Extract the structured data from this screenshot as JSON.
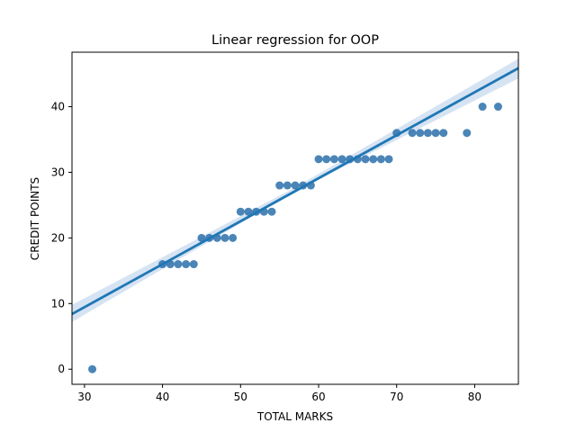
{
  "chart_data": {
    "type": "scatter",
    "title": "Linear regression for OOP",
    "xlabel": "TOTAL MARKS",
    "ylabel": "CREDIT POINTS",
    "xlim": [
      28.4,
      85.6
    ],
    "ylim": [
      -2.3,
      48.3
    ],
    "xticks": [
      30,
      40,
      50,
      60,
      70,
      80
    ],
    "yticks": [
      0,
      10,
      20,
      30,
      40
    ],
    "grid": false,
    "legend": "none",
    "point_color": "#2b70aa",
    "line_color": "#1f77b4",
    "band_color": "#aec7e8",
    "x": [
      31,
      40,
      41,
      42,
      43,
      44,
      45,
      46,
      47,
      48,
      49,
      50,
      51,
      52,
      53,
      54,
      55,
      56,
      57,
      58,
      59,
      60,
      61,
      62,
      63,
      64,
      65,
      66,
      67,
      68,
      69,
      70,
      72,
      73,
      74,
      75,
      76,
      79,
      81,
      83
    ],
    "y": [
      0,
      16,
      16,
      16,
      16,
      16,
      20,
      20,
      20,
      20,
      20,
      24,
      24,
      24,
      24,
      24,
      28,
      28,
      28,
      28,
      28,
      32,
      32,
      32,
      32,
      32,
      32,
      32,
      32,
      32,
      32,
      36,
      36,
      36,
      36,
      36,
      36,
      36,
      40,
      40
    ],
    "regression": {
      "slope": 0.655,
      "intercept": -10.2,
      "ci_band": [
        {
          "x": 28.4,
          "lower": 7.2,
          "upper": 9.8
        },
        {
          "x": 57,
          "lower": 27.1,
          "upper": 27.7
        },
        {
          "x": 85.6,
          "lower": 44.3,
          "upper": 47.3
        }
      ]
    }
  }
}
